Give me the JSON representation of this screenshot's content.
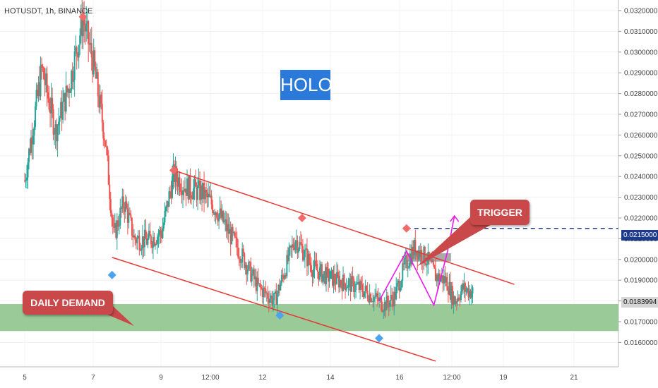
{
  "header": {
    "symbol": "HOTUSDT, 1h, BINANCE"
  },
  "annotations": {
    "holo_label": "HOLO",
    "trigger_label": "TRIGGER",
    "demand_label": "DAILY DEMAND",
    "trigger_price_tag": "0.0215000",
    "current_price_tag": "0.0183994"
  },
  "colors": {
    "up": "#26a69a",
    "down": "#ef5350",
    "channel": "#e53935",
    "demand_zone": "#8fc48c",
    "pattern": "#e81ce8",
    "trigger_line": "#1e3a8a",
    "box": "#8c8c8c"
  },
  "chart_data": {
    "type": "candlestick",
    "title": "",
    "xlabel": "",
    "ylabel": "",
    "y_ticks": [
      "0.0160000",
      "0.0170000",
      "0.0180000",
      "0.0190000",
      "0.0200000",
      "0.0210000",
      "0.0220000",
      "0.0230000",
      "0.0240000",
      "0.0250000",
      "0.0260000",
      "0.0270000",
      "0.0280000",
      "0.0290000",
      "0.0300000",
      "0.0310000",
      "0.0320000"
    ],
    "x_ticks": [
      "5",
      "7",
      "9",
      "12:00",
      "12",
      "14",
      "16",
      "12:00",
      "19",
      "21"
    ],
    "ylim": [
      0.0155,
      0.0323
    ],
    "price_path": [
      [
        0.0,
        0.0238
      ],
      [
        0.5,
        0.0292
      ],
      [
        0.9,
        0.0262
      ],
      [
        1.3,
        0.0284
      ],
      [
        1.7,
        0.0316
      ],
      [
        2.0,
        0.0295
      ],
      [
        2.35,
        0.0258
      ],
      [
        2.6,
        0.0211
      ],
      [
        2.9,
        0.0228
      ],
      [
        3.2,
        0.021
      ],
      [
        3.6,
        0.0209
      ],
      [
        4.0,
        0.0213
      ],
      [
        4.35,
        0.0241
      ],
      [
        4.7,
        0.0235
      ],
      [
        5.2,
        0.0232
      ],
      [
        5.6,
        0.0224
      ],
      [
        6.0,
        0.0212
      ],
      [
        6.4,
        0.02
      ],
      [
        6.8,
        0.0187
      ],
      [
        7.3,
        0.018
      ],
      [
        7.6,
        0.0195
      ],
      [
        7.9,
        0.021
      ],
      [
        8.1,
        0.0205
      ],
      [
        8.4,
        0.0196
      ],
      [
        8.8,
        0.0192
      ],
      [
        9.3,
        0.0189
      ],
      [
        9.7,
        0.0187
      ],
      [
        10.1,
        0.0183
      ],
      [
        10.5,
        0.0178
      ],
      [
        10.8,
        0.0182
      ],
      [
        11.1,
        0.0197
      ],
      [
        11.4,
        0.0206
      ],
      [
        11.75,
        0.02
      ],
      [
        12.0,
        0.0192
      ],
      [
        12.3,
        0.019
      ],
      [
        12.55,
        0.018
      ],
      [
        12.8,
        0.0186
      ],
      [
        13.1,
        0.0184
      ]
    ],
    "channel": {
      "upper": [
        [
          4.35,
          0.0243
        ],
        [
          14.3,
          0.0188
        ]
      ],
      "lower": [
        [
          2.55,
          0.0201
        ],
        [
          12.0,
          0.0151
        ]
      ]
    },
    "demand_zone": [
      0.01655,
      0.01785
    ],
    "trigger_level": 0.0215,
    "resistance_box": [
      [
        11.15,
        0.0199
      ],
      [
        12.45,
        0.0203
      ]
    ],
    "pattern_path": [
      [
        10.35,
        0.018
      ],
      [
        11.15,
        0.0204
      ],
      [
        11.95,
        0.0178
      ],
      [
        12.35,
        0.0204
      ]
    ],
    "pattern_projection": [
      [
        12.35,
        0.0204
      ],
      [
        12.55,
        0.0221
      ]
    ],
    "swing_highs": [
      [
        1.7,
        0.0317
      ],
      [
        4.35,
        0.0243
      ],
      [
        8.1,
        0.022
      ],
      [
        11.15,
        0.0215
      ]
    ],
    "swing_lows": [
      [
        2.55,
        0.01925
      ],
      [
        7.45,
        0.0173
      ],
      [
        10.35,
        0.0162
      ]
    ]
  }
}
